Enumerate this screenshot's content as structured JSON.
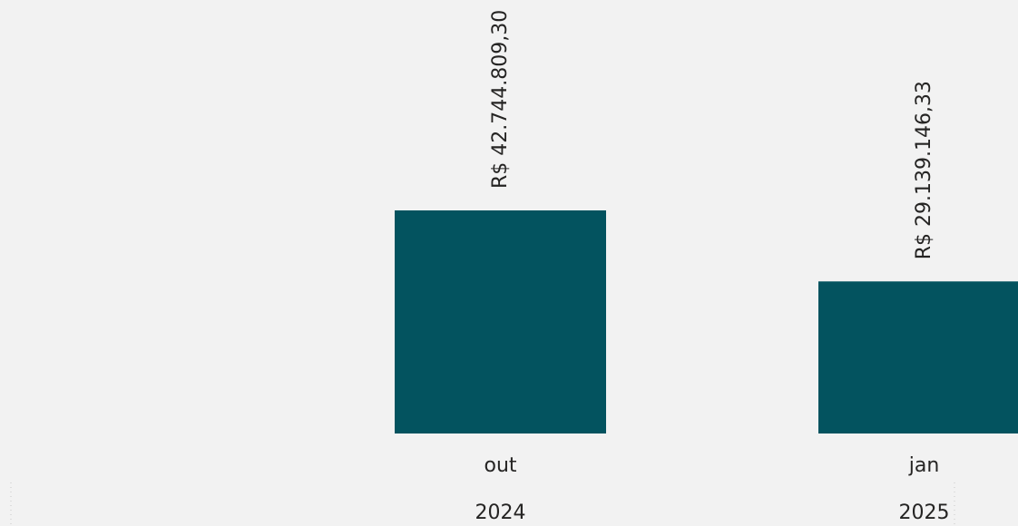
{
  "chart_data": {
    "type": "bar",
    "title": "",
    "xlabel": "",
    "ylabel": "",
    "categories": [
      {
        "month": "out",
        "year": "2024"
      },
      {
        "month": "jan",
        "year": "2025"
      }
    ],
    "values": [
      42744809.3,
      29139146.33
    ],
    "data_labels": [
      "R$ 42.744.809,30",
      "R$ 29.139.146,33"
    ],
    "x_groups": [
      "2024",
      "2025"
    ],
    "grid": false,
    "legend": "none",
    "bar_color": "#03535f",
    "background_color": "#f2f2f2",
    "text_color": "#252423"
  }
}
